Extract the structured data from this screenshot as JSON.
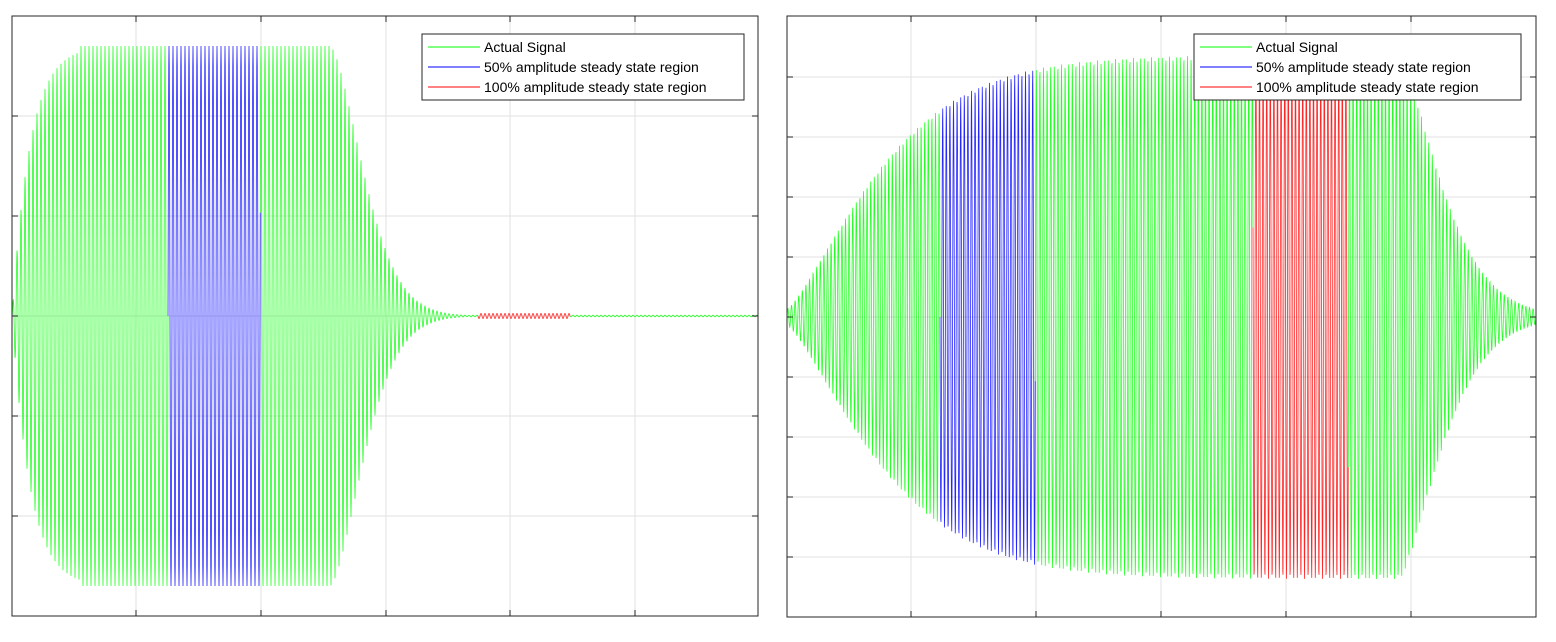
{
  "chart_data": [
    {
      "type": "line",
      "title": "",
      "xlabel": "",
      "ylabel": "",
      "grid": true,
      "tick_labels_shown": false,
      "legend_placement": "top-right",
      "legend": [
        "Actual Signal",
        "50% amplitude steady state region",
        "100% amplitude steady state region"
      ],
      "series": [
        {
          "name": "Actual Signal",
          "color": "#00ff00"
        },
        {
          "name": "50% amplitude steady state region",
          "color": "#0000ff"
        },
        {
          "name": "100% amplitude steady state region",
          "color": "#ff0000"
        }
      ]
    },
    {
      "type": "line",
      "title": "",
      "xlabel": "",
      "ylabel": "",
      "grid": true,
      "tick_labels_shown": false,
      "legend_placement": "top-right",
      "legend": [
        "Actual Signal",
        "50% amplitude steady state region",
        "100% amplitude steady state region"
      ],
      "series": [
        {
          "name": "Actual Signal",
          "color": "#00ff00"
        },
        {
          "name": "50% amplitude steady state region",
          "color": "#0000ff"
        },
        {
          "name": "100% amplitude steady state region",
          "color": "#ff0000"
        }
      ]
    }
  ]
}
